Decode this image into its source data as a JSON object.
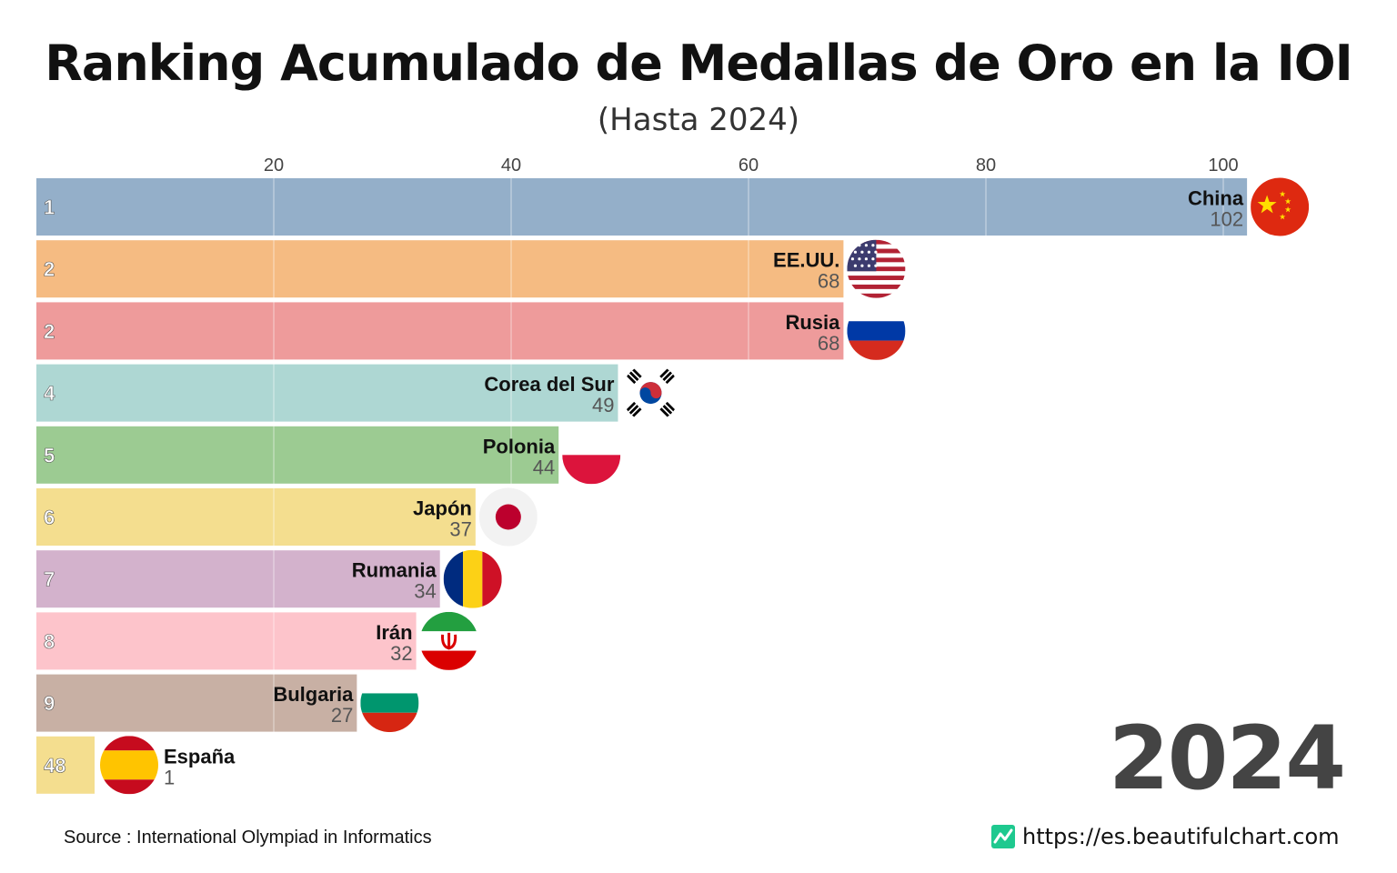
{
  "header": {
    "title": "Ranking Acumulado de Medallas de Oro en la IOI",
    "subtitle": "(Hasta 2024)"
  },
  "year_label": "2024",
  "footer": {
    "source": "Source : International Olympiad in Informatics",
    "url": "https://es.beautifulchart.com"
  },
  "chart_data": {
    "type": "bar",
    "orientation": "horizontal",
    "title": "Ranking Acumulado de Medallas de Oro en la IOI",
    "subtitle": "(Hasta 2024)",
    "x_ticks": [
      20,
      40,
      60,
      80,
      100
    ],
    "xlim": [
      0,
      106
    ],
    "grid": true,
    "rows": [
      {
        "rank": "1",
        "country": "China",
        "value": 102,
        "color": "#94afc9",
        "flag": "china-flag"
      },
      {
        "rank": "2",
        "country": "EE.UU.",
        "value": 68,
        "color": "#f5bb82",
        "flag": "usa-flag"
      },
      {
        "rank": "2",
        "country": "Rusia",
        "value": 68,
        "color": "#ee9b9b",
        "flag": "russia-flag"
      },
      {
        "rank": "4",
        "country": "Corea del Sur",
        "value": 49,
        "color": "#aed7d3",
        "flag": "south-korea-flag"
      },
      {
        "rank": "5",
        "country": "Polonia",
        "value": 44,
        "color": "#9ccb92",
        "flag": "poland-flag"
      },
      {
        "rank": "6",
        "country": "Japón",
        "value": 37,
        "color": "#f4de8f",
        "flag": "japan-flag"
      },
      {
        "rank": "7",
        "country": "Rumania",
        "value": 34,
        "color": "#d3b2cc",
        "flag": "romania-flag"
      },
      {
        "rank": "8",
        "country": "Irán",
        "value": 32,
        "color": "#fdc4cb",
        "flag": "iran-flag"
      },
      {
        "rank": "9",
        "country": "Bulgaria",
        "value": 27,
        "color": "#c8b0a4",
        "flag": "bulgaria-flag"
      },
      {
        "rank": "48",
        "country": "España",
        "value": 1,
        "color": "#f4de8f",
        "flag": "spain-flag"
      }
    ]
  }
}
